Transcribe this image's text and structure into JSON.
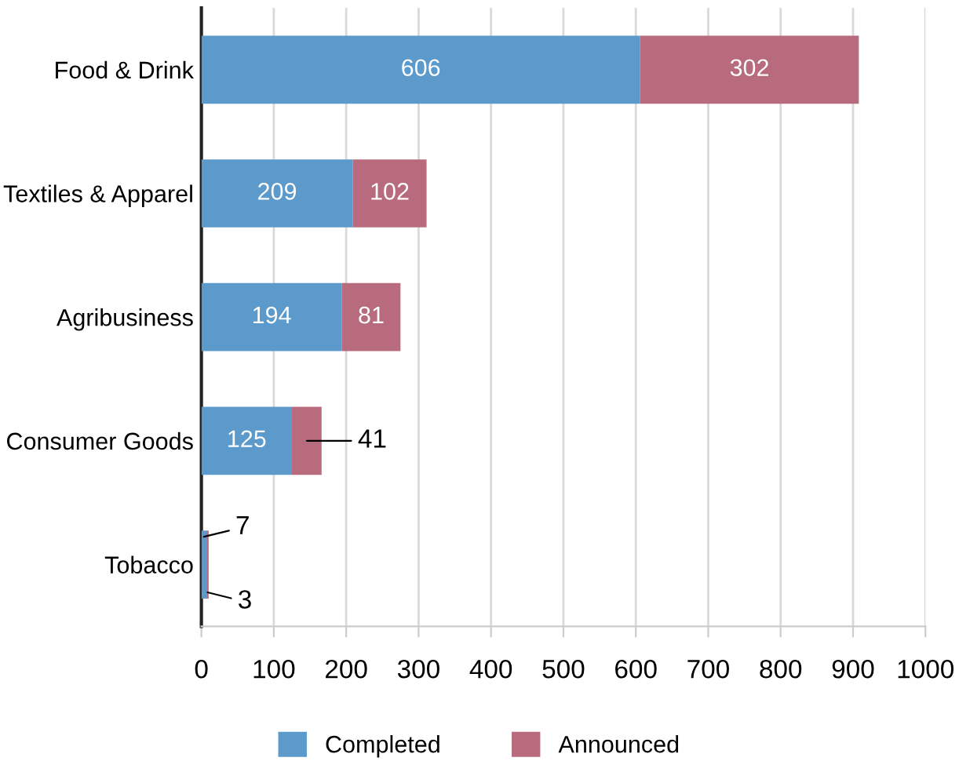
{
  "chart_data": {
    "type": "bar",
    "orientation": "horizontal",
    "stacked": true,
    "categories": [
      "Food & Drink",
      "Textiles & Apparel",
      "Agribusiness",
      "Consumer Goods",
      "Tobacco"
    ],
    "series": [
      {
        "name": "Completed",
        "color": "#5b9aca",
        "values": [
          606,
          209,
          194,
          125,
          7
        ]
      },
      {
        "name": "Announced",
        "color": "#b86b7d",
        "values": [
          302,
          102,
          81,
          41,
          3
        ]
      }
    ],
    "xlim": [
      0,
      1000
    ],
    "xticks": [
      0,
      100,
      200,
      300,
      400,
      500,
      600,
      700,
      800,
      900,
      1000
    ],
    "grid": "x",
    "legend": "bottom",
    "data_labels": true
  }
}
